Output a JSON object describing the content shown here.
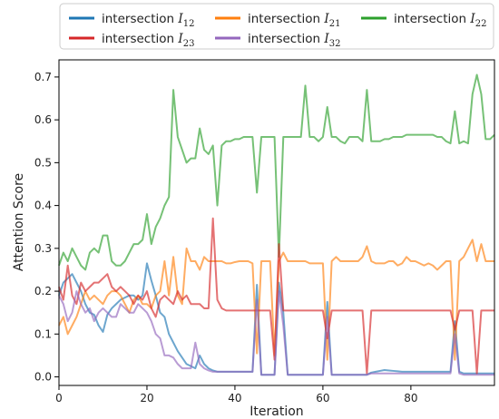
{
  "chart_data": {
    "type": "line",
    "xlabel": "Iteration",
    "ylabel": "Attention Score",
    "xlim": [
      0,
      99
    ],
    "ylim": [
      -0.02,
      0.74
    ],
    "xticks": [
      0,
      20,
      40,
      60,
      80
    ],
    "yticks": [
      0.0,
      0.1,
      0.2,
      0.3,
      0.4,
      0.5,
      0.6,
      0.7
    ],
    "grid": false,
    "legend_position": "top, outside plot (3 columns)",
    "x": [
      0,
      1,
      2,
      3,
      4,
      5,
      6,
      7,
      8,
      9,
      10,
      11,
      12,
      13,
      14,
      15,
      16,
      17,
      18,
      19,
      20,
      21,
      22,
      23,
      24,
      25,
      26,
      27,
      28,
      29,
      30,
      31,
      32,
      33,
      34,
      35,
      36,
      37,
      38,
      39,
      40,
      41,
      42,
      43,
      44,
      45,
      46,
      47,
      48,
      49,
      50,
      51,
      52,
      53,
      54,
      55,
      56,
      57,
      58,
      59,
      60,
      61,
      62,
      63,
      64,
      65,
      66,
      67,
      68,
      69,
      70,
      71,
      72,
      73,
      74,
      75,
      76,
      77,
      78,
      79,
      80,
      81,
      82,
      83,
      84,
      85,
      86,
      87,
      88,
      89,
      90,
      91,
      92,
      93,
      94,
      95,
      96,
      97,
      98,
      99
    ],
    "series": [
      {
        "name": "intersection I12",
        "label_main": "intersection ",
        "label_sub": "12",
        "color": "#1f77b4",
        "values": [
          0.19,
          0.22,
          0.23,
          0.24,
          0.22,
          0.2,
          0.17,
          0.15,
          0.145,
          0.12,
          0.105,
          0.145,
          0.16,
          0.17,
          0.18,
          0.185,
          0.19,
          0.19,
          0.18,
          0.19,
          0.265,
          0.225,
          0.19,
          0.15,
          0.14,
          0.1,
          0.08,
          0.06,
          0.045,
          0.03,
          0.025,
          0.02,
          0.05,
          0.03,
          0.02,
          0.015,
          0.012,
          0.012,
          0.012,
          0.012,
          0.012,
          0.012,
          0.012,
          0.012,
          0.012,
          0.215,
          0.005,
          0.005,
          0.005,
          0.005,
          0.22,
          0.15,
          0.005,
          0.005,
          0.005,
          0.005,
          0.005,
          0.005,
          0.005,
          0.005,
          0.005,
          0.175,
          0.005,
          0.005,
          0.005,
          0.005,
          0.005,
          0.005,
          0.005,
          0.005,
          0.005,
          0.01,
          0.012,
          0.014,
          0.016,
          0.015,
          0.014,
          0.013,
          0.012,
          0.012,
          0.012,
          0.012,
          0.012,
          0.012,
          0.012,
          0.012,
          0.012,
          0.012,
          0.012,
          0.012,
          0.13,
          0.012,
          0.008,
          0.008,
          0.008,
          0.008,
          0.008,
          0.008,
          0.008,
          0.008
        ]
      },
      {
        "name": "intersection I21",
        "label_main": "intersection ",
        "label_sub": "21",
        "color": "#ff7f0e",
        "values": [
          0.12,
          0.14,
          0.1,
          0.12,
          0.14,
          0.17,
          0.2,
          0.18,
          0.19,
          0.18,
          0.17,
          0.19,
          0.2,
          0.2,
          0.19,
          0.17,
          0.15,
          0.18,
          0.19,
          0.17,
          0.17,
          0.16,
          0.19,
          0.2,
          0.27,
          0.19,
          0.28,
          0.19,
          0.17,
          0.3,
          0.27,
          0.27,
          0.25,
          0.28,
          0.27,
          0.27,
          0.27,
          0.27,
          0.265,
          0.265,
          0.268,
          0.27,
          0.27,
          0.27,
          0.265,
          0.055,
          0.27,
          0.27,
          0.27,
          0.05,
          0.27,
          0.29,
          0.27,
          0.27,
          0.27,
          0.27,
          0.27,
          0.265,
          0.265,
          0.265,
          0.265,
          0.04,
          0.27,
          0.28,
          0.27,
          0.27,
          0.27,
          0.27,
          0.27,
          0.28,
          0.305,
          0.27,
          0.265,
          0.265,
          0.265,
          0.27,
          0.27,
          0.26,
          0.265,
          0.28,
          0.27,
          0.27,
          0.265,
          0.26,
          0.265,
          0.26,
          0.25,
          0.26,
          0.27,
          0.27,
          0.04,
          0.27,
          0.28,
          0.3,
          0.32,
          0.27,
          0.31,
          0.27,
          0.27,
          0.27
        ]
      },
      {
        "name": "intersection I22",
        "label_main": "intersection ",
        "label_sub": "22",
        "color": "#2ca02c",
        "values": [
          0.26,
          0.29,
          0.27,
          0.3,
          0.28,
          0.26,
          0.25,
          0.29,
          0.3,
          0.29,
          0.33,
          0.33,
          0.27,
          0.26,
          0.26,
          0.27,
          0.29,
          0.31,
          0.31,
          0.32,
          0.38,
          0.31,
          0.35,
          0.37,
          0.4,
          0.42,
          0.67,
          0.56,
          0.53,
          0.5,
          0.51,
          0.51,
          0.58,
          0.53,
          0.52,
          0.54,
          0.4,
          0.54,
          0.55,
          0.55,
          0.555,
          0.555,
          0.56,
          0.56,
          0.56,
          0.43,
          0.56,
          0.56,
          0.56,
          0.56,
          0.28,
          0.56,
          0.56,
          0.56,
          0.56,
          0.56,
          0.68,
          0.56,
          0.56,
          0.55,
          0.56,
          0.63,
          0.56,
          0.56,
          0.55,
          0.545,
          0.56,
          0.56,
          0.56,
          0.55,
          0.67,
          0.55,
          0.55,
          0.55,
          0.555,
          0.555,
          0.56,
          0.56,
          0.56,
          0.565,
          0.565,
          0.565,
          0.565,
          0.565,
          0.565,
          0.565,
          0.56,
          0.56,
          0.55,
          0.545,
          0.62,
          0.545,
          0.55,
          0.545,
          0.66,
          0.705,
          0.66,
          0.555,
          0.555,
          0.565
        ]
      },
      {
        "name": "intersection I23",
        "label_main": "intersection ",
        "label_sub": "23",
        "color": "#d62728",
        "values": [
          0.21,
          0.18,
          0.26,
          0.19,
          0.17,
          0.22,
          0.2,
          0.21,
          0.22,
          0.22,
          0.23,
          0.24,
          0.21,
          0.2,
          0.21,
          0.2,
          0.19,
          0.17,
          0.19,
          0.18,
          0.2,
          0.16,
          0.14,
          0.18,
          0.19,
          0.18,
          0.17,
          0.2,
          0.18,
          0.19,
          0.17,
          0.17,
          0.17,
          0.16,
          0.16,
          0.37,
          0.18,
          0.16,
          0.155,
          0.155,
          0.155,
          0.155,
          0.155,
          0.155,
          0.155,
          0.155,
          0.155,
          0.155,
          0.155,
          0.04,
          0.31,
          0.155,
          0.155,
          0.155,
          0.155,
          0.155,
          0.155,
          0.155,
          0.155,
          0.155,
          0.155,
          0.09,
          0.155,
          0.155,
          0.155,
          0.155,
          0.155,
          0.155,
          0.155,
          0.155,
          0.008,
          0.155,
          0.155,
          0.155,
          0.155,
          0.155,
          0.155,
          0.155,
          0.155,
          0.155,
          0.155,
          0.155,
          0.155,
          0.155,
          0.155,
          0.155,
          0.155,
          0.155,
          0.155,
          0.155,
          0.11,
          0.155,
          0.155,
          0.155,
          0.155,
          0.008,
          0.155,
          0.155,
          0.155,
          0.155
        ]
      },
      {
        "name": "intersection I32",
        "label_main": "intersection ",
        "label_sub": "32",
        "color": "#9467bd",
        "values": [
          0.19,
          0.17,
          0.13,
          0.15,
          0.2,
          0.17,
          0.15,
          0.16,
          0.13,
          0.15,
          0.16,
          0.15,
          0.14,
          0.14,
          0.17,
          0.16,
          0.15,
          0.15,
          0.17,
          0.16,
          0.15,
          0.13,
          0.1,
          0.09,
          0.05,
          0.05,
          0.045,
          0.03,
          0.02,
          0.02,
          0.02,
          0.08,
          0.03,
          0.02,
          0.015,
          0.012,
          0.012,
          0.012,
          0.012,
          0.012,
          0.012,
          0.012,
          0.012,
          0.012,
          0.012,
          0.18,
          0.005,
          0.005,
          0.005,
          0.005,
          0.2,
          0.12,
          0.005,
          0.005,
          0.005,
          0.005,
          0.005,
          0.005,
          0.005,
          0.005,
          0.005,
          0.14,
          0.005,
          0.005,
          0.005,
          0.005,
          0.005,
          0.005,
          0.005,
          0.005,
          0.005,
          0.008,
          0.008,
          0.008,
          0.008,
          0.008,
          0.008,
          0.008,
          0.008,
          0.008,
          0.008,
          0.008,
          0.008,
          0.008,
          0.008,
          0.008,
          0.008,
          0.008,
          0.008,
          0.008,
          0.1,
          0.008,
          0.005,
          0.005,
          0.005,
          0.005,
          0.005,
          0.005,
          0.005,
          0.005
        ]
      }
    ]
  }
}
